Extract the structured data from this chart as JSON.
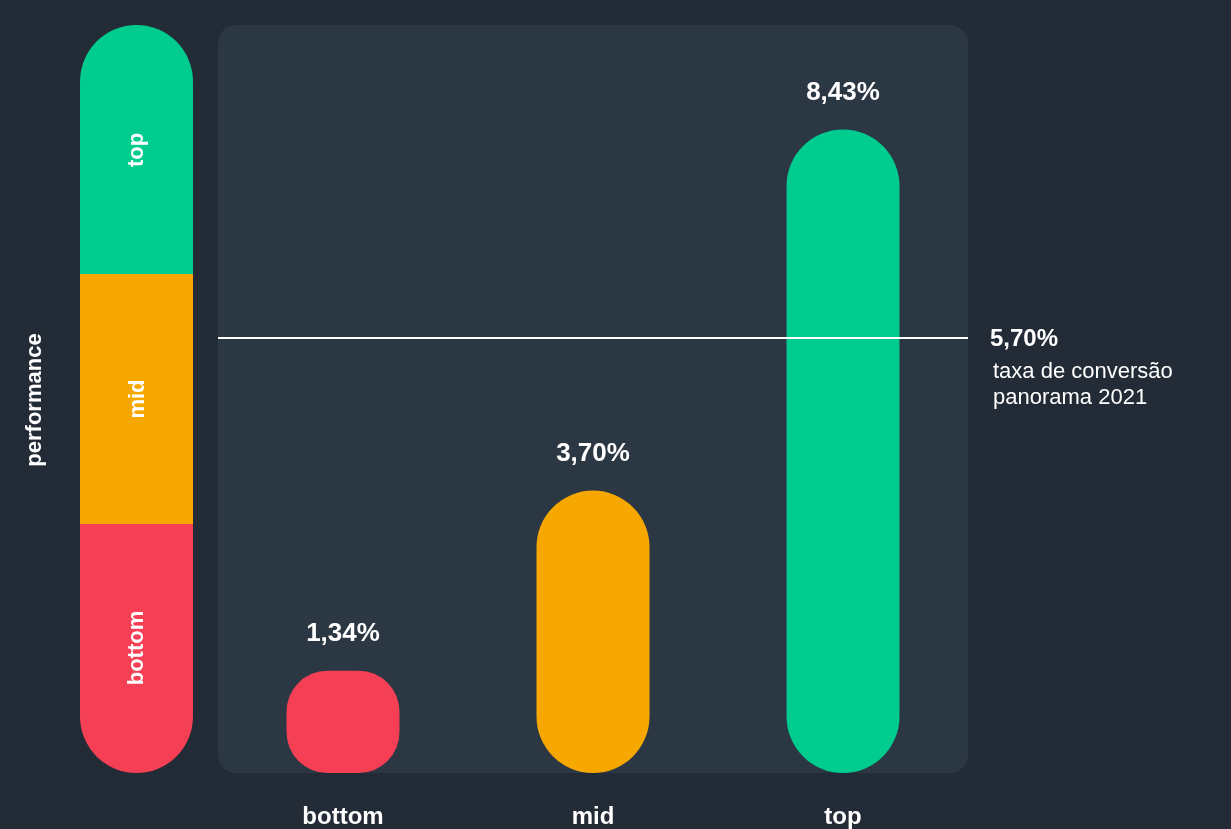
{
  "chart_data": {
    "type": "bar",
    "categories": [
      "bottom",
      "mid",
      "top"
    ],
    "values": [
      1.34,
      3.7,
      8.43
    ],
    "colors": [
      "#f43f55",
      "#f7a800",
      "#00cc8f"
    ],
    "value_labels": [
      "1,34%",
      "3,70%",
      "8,43%"
    ],
    "ylim": [
      0,
      9.8
    ],
    "tick_labels": "x",
    "grid": false,
    "ref_lines": [
      {
        "axis": "y",
        "value": 5.7,
        "label": "5,70%",
        "color": "#ffffff"
      }
    ],
    "annotations": [
      "taxa de conversão panorama 2021",
      "performance"
    ]
  }
}
